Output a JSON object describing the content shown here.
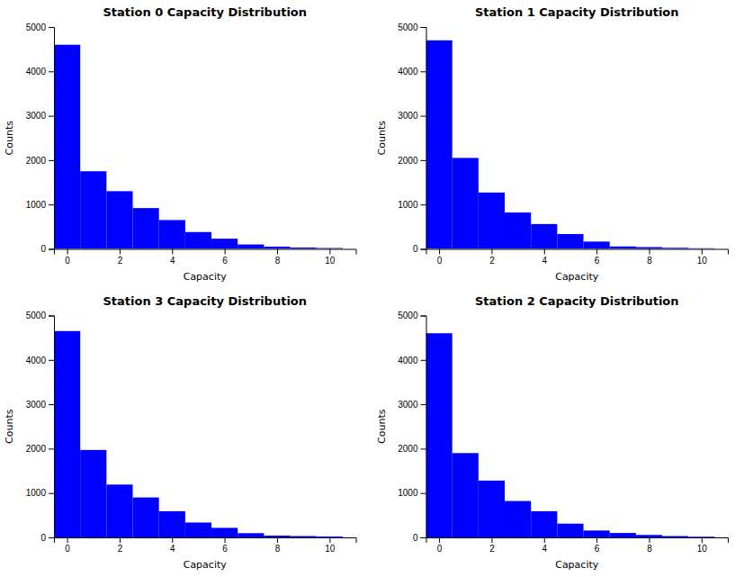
{
  "chart_data": [
    {
      "type": "bar",
      "title": "Station 0 Capacity Distribution",
      "x_label": "Capacity",
      "y_label": "Counts",
      "x": [
        0,
        1,
        2,
        3,
        4,
        5,
        6,
        7,
        8,
        9,
        10
      ],
      "values": [
        4600,
        1750,
        1300,
        920,
        650,
        380,
        230,
        100,
        50,
        30,
        20
      ],
      "color": "#0000ff",
      "xlim": [
        -0.5,
        11.0
      ],
      "xticks": [
        0,
        2,
        4,
        6,
        8,
        10
      ],
      "ylim": [
        0,
        5000
      ],
      "yticks": [
        0,
        1000,
        2000,
        3000,
        4000,
        5000
      ],
      "grid": false
    },
    {
      "type": "bar",
      "title": "Station 1 Capacity Distribution",
      "x_label": "Capacity",
      "y_label": "Counts",
      "x": [
        0,
        1,
        2,
        3,
        4,
        5,
        6,
        7,
        8,
        9,
        10
      ],
      "values": [
        4700,
        2050,
        1270,
        820,
        560,
        335,
        165,
        55,
        40,
        25,
        15
      ],
      "color": "#0000ff",
      "xlim": [
        -0.5,
        11.0
      ],
      "xticks": [
        0,
        2,
        4,
        6,
        8,
        10
      ],
      "ylim": [
        0,
        5000
      ],
      "yticks": [
        0,
        1000,
        2000,
        3000,
        4000,
        5000
      ],
      "grid": false
    },
    {
      "type": "bar",
      "title": "Station 3 Capacity Distribution",
      "x_label": "Capacity",
      "y_label": "Counts",
      "x": [
        0,
        1,
        2,
        3,
        4,
        5,
        6,
        7,
        8,
        9,
        10
      ],
      "values": [
        4650,
        1970,
        1190,
        900,
        590,
        335,
        215,
        95,
        40,
        30,
        20
      ],
      "color": "#0000ff",
      "xlim": [
        -0.5,
        11.0
      ],
      "xticks": [
        0,
        2,
        4,
        6,
        8,
        10
      ],
      "ylim": [
        0,
        5000
      ],
      "yticks": [
        0,
        1000,
        2000,
        3000,
        4000,
        5000
      ],
      "grid": false
    },
    {
      "type": "bar",
      "title": "Station 2 Capacity Distribution",
      "x_label": "Capacity",
      "y_label": "Counts",
      "x": [
        0,
        1,
        2,
        3,
        4,
        5,
        6,
        7,
        8,
        9,
        10
      ],
      "values": [
        4600,
        1900,
        1280,
        820,
        590,
        310,
        155,
        100,
        55,
        30,
        15
      ],
      "color": "#0000ff",
      "xlim": [
        -0.5,
        11.0
      ],
      "xticks": [
        0,
        2,
        4,
        6,
        8,
        10
      ],
      "ylim": [
        0,
        5000
      ],
      "yticks": [
        0,
        1000,
        2000,
        3000,
        4000,
        5000
      ],
      "grid": false
    }
  ]
}
